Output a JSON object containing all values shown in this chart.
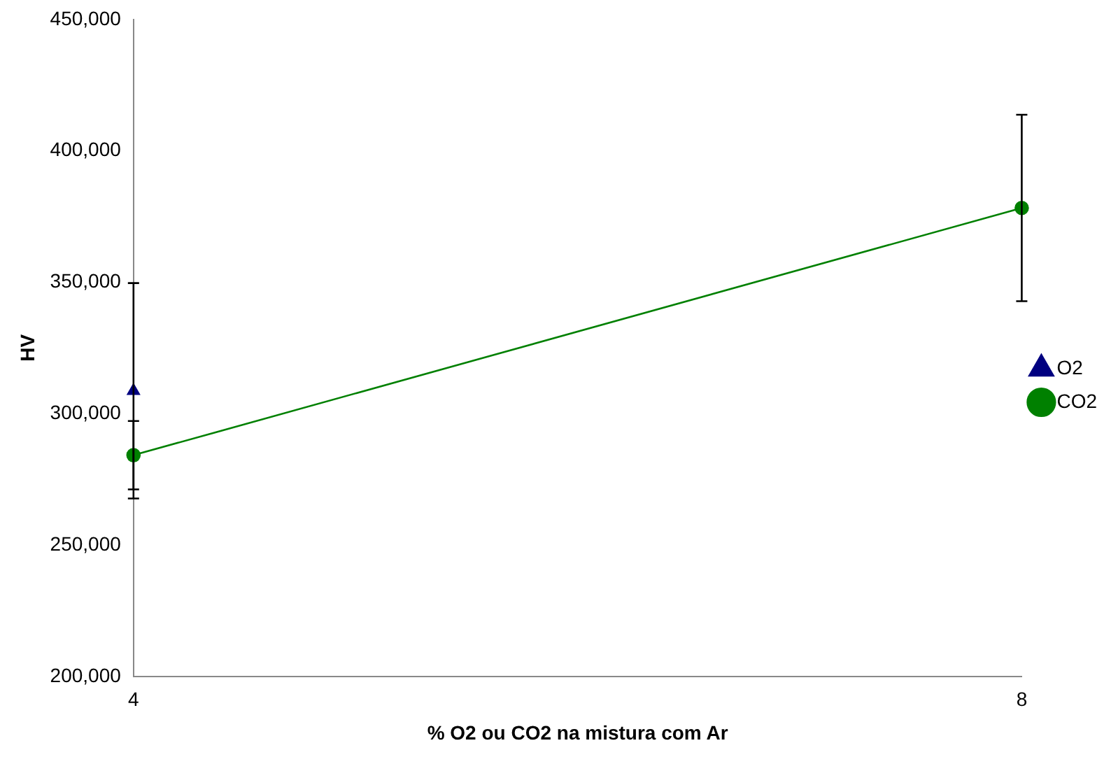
{
  "chart_data": {
    "type": "line",
    "xlabel": "% O2 ou CO2 na mistura com Ar",
    "ylabel": "HV",
    "categories": [
      "4",
      "8"
    ],
    "series": [
      {
        "name": "O2",
        "color": "#000080",
        "marker": "triangle",
        "values": [
          308700,
          null
        ],
        "errors": [
          41000,
          null
        ]
      },
      {
        "name": "CO2",
        "color": "#008000",
        "marker": "circle",
        "values": [
          284200,
          378300
        ],
        "errors": [
          13000,
          35500
        ]
      }
    ],
    "ylim": [
      200000,
      450000
    ],
    "yticks": [
      {
        "value": 200000,
        "label": "200,000"
      },
      {
        "value": 250000,
        "label": "250,000"
      },
      {
        "value": 300000,
        "label": "300,000"
      },
      {
        "value": 350000,
        "label": "350,000"
      },
      {
        "value": 400000,
        "label": "400,000"
      },
      {
        "value": 450000,
        "label": "450,000"
      }
    ],
    "grid": false,
    "legend": "right",
    "line_style": "solid"
  }
}
